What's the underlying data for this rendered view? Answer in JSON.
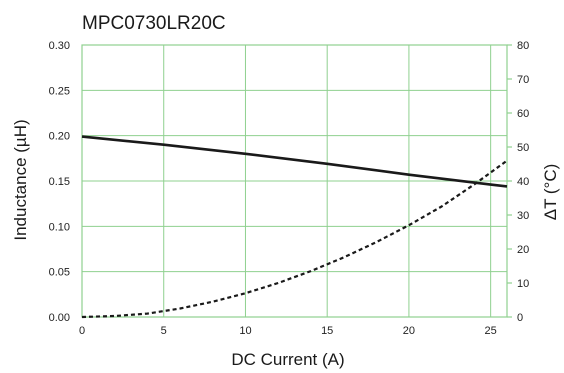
{
  "chart_data": {
    "type": "line",
    "title": "MPC0730LR20C",
    "xlabel": "DC Current (A)",
    "ylabel": "Inductance (µH)",
    "ylabel_right": "ΔT (°C)",
    "xlim": [
      0,
      26
    ],
    "ylim": [
      0,
      0.3
    ],
    "ylim_right": [
      0,
      80
    ],
    "x_ticks": [
      0,
      5,
      10,
      15,
      20,
      25
    ],
    "y_ticks": [
      "0.00",
      "0.05",
      "0.10",
      "0.15",
      "0.20",
      "0.25",
      "0.30"
    ],
    "y_ticks_right": [
      0,
      10,
      20,
      30,
      40,
      50,
      60,
      70,
      80
    ],
    "grid": true,
    "grid_color": "#8fd08f",
    "series": [
      {
        "axis": "left",
        "style": "solid",
        "color": "#1a1a1a",
        "x": [
          0,
          5,
          10,
          15,
          20,
          25,
          26
        ],
        "y": [
          0.199,
          0.19,
          0.18,
          0.169,
          0.157,
          0.146,
          0.144
        ]
      },
      {
        "axis": "right",
        "style": "dashed",
        "color": "#1a1a1a",
        "x": [
          0,
          2,
          4,
          6,
          8,
          10,
          12,
          14,
          16,
          18,
          20,
          22,
          24,
          26
        ],
        "y": [
          0,
          0.3,
          1.0,
          2.5,
          4.5,
          7.0,
          10.0,
          13.5,
          17.5,
          22.0,
          27.0,
          32.5,
          39.0,
          46.0
        ]
      }
    ]
  }
}
